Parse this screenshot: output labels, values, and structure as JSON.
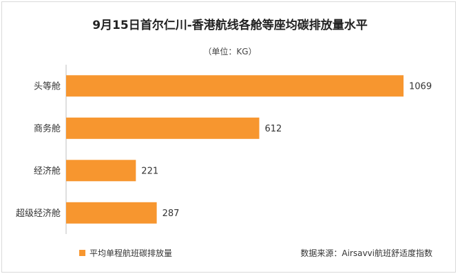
{
  "chart_data": {
    "type": "bar",
    "orientation": "horizontal",
    "title": "9月15日首尔仁川-香港航线各舱等座均碳排放量水平",
    "subtitle": "（单位：KG）",
    "categories": [
      "头等舱",
      "商务舱",
      "经济舱",
      "超级经济舱"
    ],
    "series": [
      {
        "name": "平均单程航班碳排放量",
        "values": [
          1069,
          612,
          221,
          287
        ]
      }
    ],
    "data_labels": [
      "1069",
      "612",
      "221",
      "287"
    ],
    "xlim": [
      0,
      1069
    ],
    "grid": false,
    "legend_position": "bottom-left",
    "bar_color": "#F7962F"
  },
  "source": "数据来源：Airsavvi航班舒适度指数"
}
